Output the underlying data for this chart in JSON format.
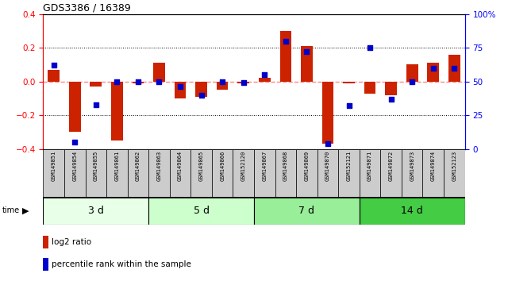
{
  "title": "GDS3386 / 16389",
  "samples": [
    "GSM149851",
    "GSM149854",
    "GSM149855",
    "GSM149861",
    "GSM149862",
    "GSM149863",
    "GSM149864",
    "GSM149865",
    "GSM149866",
    "GSM152120",
    "GSM149867",
    "GSM149868",
    "GSM149869",
    "GSM149870",
    "GSM152121",
    "GSM149871",
    "GSM149872",
    "GSM149873",
    "GSM149874",
    "GSM152123"
  ],
  "log2_ratio": [
    0.07,
    -0.3,
    -0.03,
    -0.35,
    -0.01,
    0.11,
    -0.1,
    -0.09,
    -0.05,
    -0.01,
    0.02,
    0.3,
    0.21,
    -0.37,
    -0.01,
    -0.07,
    -0.08,
    0.1,
    0.11,
    0.16
  ],
  "percentile": [
    62,
    5,
    33,
    50,
    50,
    50,
    46,
    40,
    50,
    49,
    55,
    80,
    72,
    4,
    32,
    75,
    37,
    50,
    60,
    60
  ],
  "groups": [
    {
      "label": "3 d",
      "start": 0,
      "end": 5,
      "color": "#e8ffe8"
    },
    {
      "label": "5 d",
      "start": 5,
      "end": 10,
      "color": "#ccffcc"
    },
    {
      "label": "7 d",
      "start": 10,
      "end": 15,
      "color": "#99ee99"
    },
    {
      "label": "14 d",
      "start": 15,
      "end": 20,
      "color": "#44cc44"
    }
  ],
  "ylim_left": [
    -0.4,
    0.4
  ],
  "ylim_right": [
    0,
    100
  ],
  "yticks_left": [
    -0.4,
    -0.2,
    0.0,
    0.2,
    0.4
  ],
  "yticks_right": [
    0,
    25,
    50,
    75,
    100
  ],
  "yticklabels_right": [
    "0",
    "25",
    "50",
    "75",
    "100%"
  ],
  "bar_color": "#cc2200",
  "dot_color": "#0000cc",
  "zero_line_color": "#ff8888",
  "bg_color": "#ffffff",
  "bar_width": 0.55,
  "dot_size": 18
}
